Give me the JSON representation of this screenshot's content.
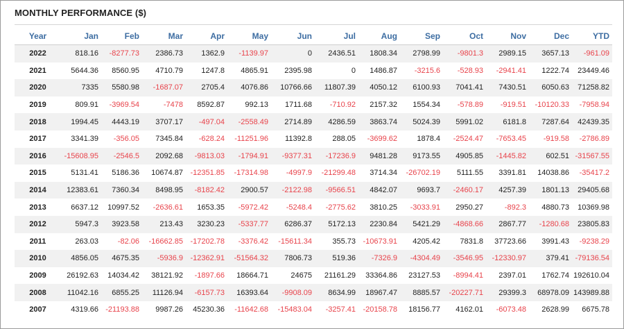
{
  "title": "MONTHLY PERFORMANCE ($)",
  "colors": {
    "header": "#3d6da2",
    "negative": "#e8434b",
    "stripe": "#f1f1f1"
  },
  "columns": [
    "Year",
    "Jan",
    "Feb",
    "Mar",
    "Apr",
    "May",
    "Jun",
    "Jul",
    "Aug",
    "Sep",
    "Oct",
    "Nov",
    "Dec",
    "YTD"
  ],
  "rows": [
    [
      "2022",
      "818.16",
      "-8277.73",
      "2386.73",
      "1362.9",
      "-1139.97",
      "0",
      "2436.51",
      "1808.34",
      "2798.99",
      "-9801.3",
      "2989.15",
      "3657.13",
      "-961.09"
    ],
    [
      "2021",
      "5644.36",
      "8560.95",
      "4710.79",
      "1247.8",
      "4865.91",
      "2395.98",
      "0",
      "1486.87",
      "-3215.6",
      "-528.93",
      "-2941.41",
      "1222.74",
      "23449.46"
    ],
    [
      "2020",
      "7335",
      "5580.98",
      "-1687.07",
      "2705.4",
      "4076.86",
      "10766.66",
      "11807.39",
      "4050.12",
      "6100.93",
      "7041.41",
      "7430.51",
      "6050.63",
      "71258.82"
    ],
    [
      "2019",
      "809.91",
      "-3969.54",
      "-7478",
      "8592.87",
      "992.13",
      "1711.68",
      "-710.92",
      "2157.32",
      "1554.34",
      "-578.89",
      "-919.51",
      "-10120.33",
      "-7958.94"
    ],
    [
      "2018",
      "1994.45",
      "4443.19",
      "3707.17",
      "-497.04",
      "-2558.49",
      "2714.89",
      "4286.59",
      "3863.74",
      "5024.39",
      "5991.02",
      "6181.8",
      "7287.64",
      "42439.35"
    ],
    [
      "2017",
      "3341.39",
      "-356.05",
      "7345.84",
      "-628.24",
      "-11251.96",
      "11392.8",
      "288.05",
      "-3699.62",
      "1878.4",
      "-2524.47",
      "-7653.45",
      "-919.58",
      "-2786.89"
    ],
    [
      "2016",
      "-15608.95",
      "-2546.5",
      "2092.68",
      "-9813.03",
      "-1794.91",
      "-9377.31",
      "-17236.9",
      "9481.28",
      "9173.55",
      "4905.85",
      "-1445.82",
      "602.51",
      "-31567.55"
    ],
    [
      "2015",
      "5131.41",
      "5186.36",
      "10674.87",
      "-12351.85",
      "-17314.98",
      "-4997.9",
      "-21299.48",
      "3714.34",
      "-26702.19",
      "5111.55",
      "3391.81",
      "14038.86",
      "-35417.2"
    ],
    [
      "2014",
      "12383.61",
      "7360.34",
      "8498.95",
      "-8182.42",
      "2900.57",
      "-2122.98",
      "-9566.51",
      "4842.07",
      "9693.7",
      "-2460.17",
      "4257.39",
      "1801.13",
      "29405.68"
    ],
    [
      "2013",
      "6637.12",
      "10997.52",
      "-2636.61",
      "1653.35",
      "-5972.42",
      "-5248.4",
      "-2775.62",
      "3810.25",
      "-3033.91",
      "2950.27",
      "-892.3",
      "4880.73",
      "10369.98"
    ],
    [
      "2012",
      "5947.3",
      "3923.58",
      "213.43",
      "3230.23",
      "-5337.77",
      "6286.37",
      "5172.13",
      "2230.84",
      "5421.29",
      "-4868.66",
      "2867.77",
      "-1280.68",
      "23805.83"
    ],
    [
      "2011",
      "263.03",
      "-82.06",
      "-16662.85",
      "-17202.78",
      "-3376.42",
      "-15611.34",
      "355.73",
      "-10673.91",
      "4205.42",
      "7831.8",
      "37723.66",
      "3991.43",
      "-9238.29"
    ],
    [
      "2010",
      "4856.05",
      "4675.35",
      "-5936.9",
      "-12362.91",
      "-51564.32",
      "7806.73",
      "519.36",
      "-7326.9",
      "-4304.49",
      "-3546.95",
      "-12330.97",
      "379.41",
      "-79136.54"
    ],
    [
      "2009",
      "26192.63",
      "14034.42",
      "38121.92",
      "-1897.66",
      "18664.71",
      "24675",
      "21161.29",
      "33364.86",
      "23127.53",
      "-8994.41",
      "2397.01",
      "1762.74",
      "192610.04"
    ],
    [
      "2008",
      "11042.16",
      "6855.25",
      "11126.94",
      "-6157.73",
      "16393.64",
      "-9908.09",
      "8634.99",
      "18967.47",
      "8885.57",
      "-20227.71",
      "29399.3",
      "68978.09",
      "143989.88"
    ],
    [
      "2007",
      "4319.66",
      "-21193.88",
      "9987.26",
      "45230.36",
      "-11642.68",
      "-15483.04",
      "-3257.41",
      "-20158.78",
      "18156.77",
      "4162.01",
      "-6073.48",
      "2628.99",
      "6675.78"
    ]
  ]
}
